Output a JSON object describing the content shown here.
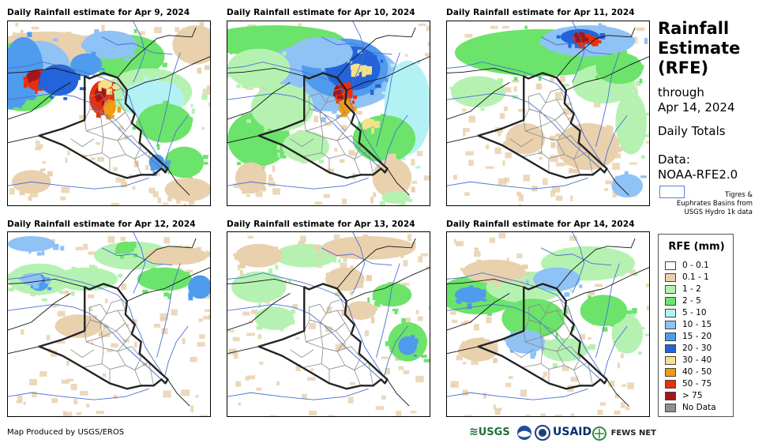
{
  "panels": [
    {
      "title": "Daily Rainfall estimate for Apr 9, 2024",
      "rain_level": "very heavy"
    },
    {
      "title": "Daily Rainfall estimate for Apr 10, 2024",
      "rain_level": "very heavy"
    },
    {
      "title": "Daily Rainfall estimate for Apr 11, 2024",
      "rain_level": "moderate"
    },
    {
      "title": "Daily Rainfall estimate for Apr 12, 2024",
      "rain_level": "light"
    },
    {
      "title": "Daily Rainfall estimate for Apr 13, 2024",
      "rain_level": "light"
    },
    {
      "title": "Daily Rainfall estimate for Apr 14, 2024",
      "rain_level": "light"
    }
  ],
  "side": {
    "title_line1": "Rainfall",
    "title_line2": "Estimate",
    "title_line3": "(RFE)",
    "through": "through",
    "through_date": "Apr 14, 2024",
    "daily_totals": "Daily Totals",
    "data_label": "Data:",
    "data_source": "NOAA-RFE2.0",
    "basin_note_1": "Tigres &",
    "basin_note_2": "Euphrates Basins from",
    "basin_note_3": "USGS Hydro 1k data"
  },
  "legend": {
    "title": "RFE (mm)",
    "items": [
      {
        "label": "0 - 0.1",
        "color": "#ffffff"
      },
      {
        "label": "0.1 - 1",
        "color": "#e9d1ae"
      },
      {
        "label": "1 - 2",
        "color": "#b5f2b1"
      },
      {
        "label": "2 - 5",
        "color": "#6ce36a"
      },
      {
        "label": "5 - 10",
        "color": "#b4f1f4"
      },
      {
        "label": "10 - 15",
        "color": "#8fc2f5"
      },
      {
        "label": "15 - 20",
        "color": "#4f9bed"
      },
      {
        "label": "20 - 30",
        "color": "#2463d9"
      },
      {
        "label": "30 - 40",
        "color": "#f6e08c"
      },
      {
        "label": "40 - 50",
        "color": "#f39c12"
      },
      {
        "label": "50 - 75",
        "color": "#e8300e"
      },
      {
        "label": "> 75",
        "color": "#a4161a"
      },
      {
        "label": "No Data",
        "color": "#8f8f8f"
      }
    ]
  },
  "footer": {
    "credit": "Map Produced by USGS/EROS",
    "logo_usgs": "USGS",
    "logo_usaid": "USAID",
    "logo_fewsnet": "FEWS NET"
  },
  "colors": {
    "country_border": "#222222",
    "province_border": "#8a8a8a",
    "basin_line": "#4a6fd4",
    "frame": "#000000"
  }
}
